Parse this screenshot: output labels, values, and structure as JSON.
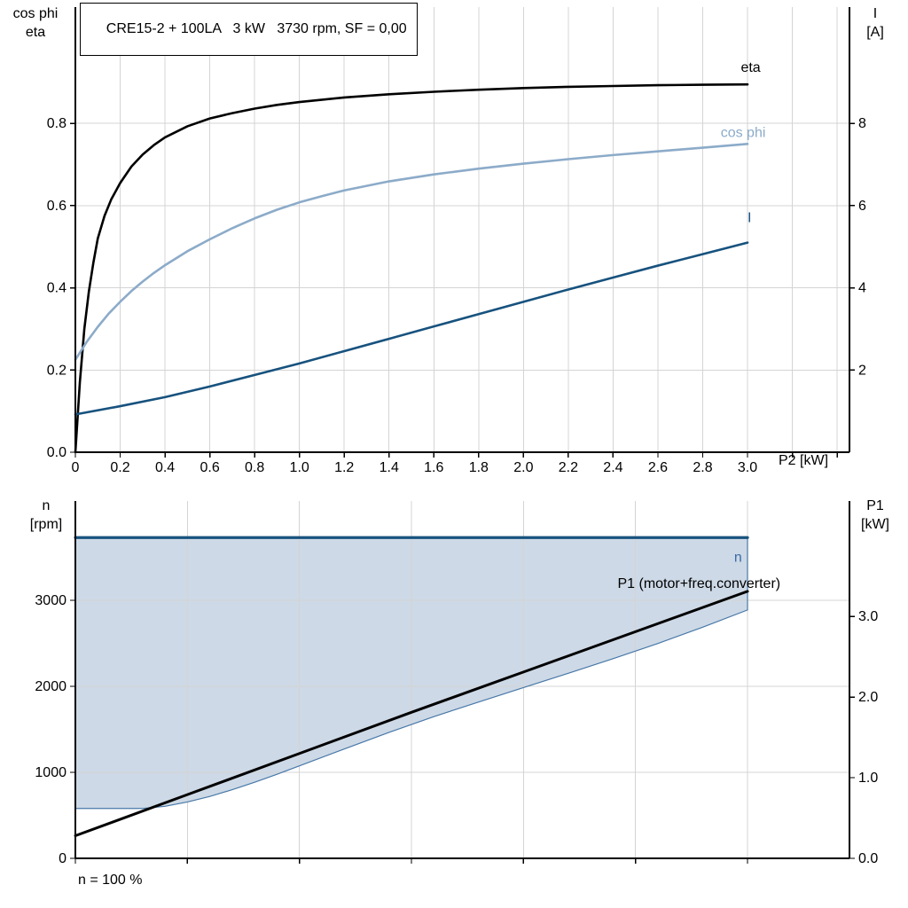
{
  "title": "CRE15-2 + 100LA   3 kW   3730 rpm, SF = 0,00",
  "colors": {
    "grid": "#D4D4D4",
    "axis": "#000000"
  },
  "chart_data": [
    {
      "id": "motor-efficiency-chart",
      "type": "line",
      "xlabel": "P2 [kW]",
      "xlim": [
        0,
        3.455
      ],
      "x_grid_step": 0.2,
      "x_tick_values": [
        0,
        0.2,
        0.4,
        0.6,
        0.8,
        1,
        1.2,
        1.4,
        1.6,
        1.8,
        2,
        2.2,
        2.4,
        2.6,
        2.8,
        3
      ],
      "x_tick_labels": [
        "0",
        "0.2",
        "0.4",
        "0.6",
        "0.8",
        "1.0",
        "1.2",
        "1.4",
        "1.6",
        "1.8",
        "2.0",
        "2.2",
        "2.4",
        "2.6",
        "2.8",
        "3.0"
      ],
      "left_axis": {
        "title_lines": [
          "cos phi",
          "eta"
        ],
        "lim": [
          0,
          1.083
        ],
        "tick_values": [
          0,
          0.2,
          0.4,
          0.6,
          0.8
        ],
        "tick_labels": [
          "0.0",
          "0.2",
          "0.4",
          "0.6",
          "0.8"
        ]
      },
      "right_axis": {
        "title_lines": [
          "I",
          "[A]"
        ],
        "lim": [
          0,
          10.83
        ],
        "tick_values": [
          2,
          4,
          6,
          8
        ],
        "tick_labels": [
          "2",
          "4",
          "6",
          "8"
        ]
      },
      "series": [
        {
          "name": "eta",
          "axis": "left",
          "color": "#000000",
          "width": 2.6,
          "label": {
            "text": "eta",
            "x": 2.97,
            "y": 0.925,
            "color": "#000000"
          },
          "points": [
            [
              0,
              0
            ],
            [
              0.02,
              0.17
            ],
            [
              0.04,
              0.3
            ],
            [
              0.06,
              0.39
            ],
            [
              0.08,
              0.46
            ],
            [
              0.1,
              0.52
            ],
            [
              0.13,
              0.575
            ],
            [
              0.16,
              0.615
            ],
            [
              0.2,
              0.655
            ],
            [
              0.25,
              0.695
            ],
            [
              0.3,
              0.724
            ],
            [
              0.35,
              0.747
            ],
            [
              0.4,
              0.766
            ],
            [
              0.5,
              0.793
            ],
            [
              0.6,
              0.812
            ],
            [
              0.7,
              0.825
            ],
            [
              0.8,
              0.836
            ],
            [
              0.9,
              0.845
            ],
            [
              1,
              0.852
            ],
            [
              1.2,
              0.863
            ],
            [
              1.4,
              0.871
            ],
            [
              1.6,
              0.877
            ],
            [
              1.8,
              0.882
            ],
            [
              2,
              0.886
            ],
            [
              2.2,
              0.889
            ],
            [
              2.4,
              0.891
            ],
            [
              2.6,
              0.893
            ],
            [
              2.8,
              0.894
            ],
            [
              3,
              0.895
            ]
          ]
        },
        {
          "name": "cos phi",
          "axis": "left",
          "color": "#8CABC9",
          "width": 2.6,
          "label": {
            "text": "cos phi",
            "x": 2.88,
            "y": 0.767,
            "color": "#8CABC9"
          },
          "points": [
            [
              0,
              0.225
            ],
            [
              0.05,
              0.268
            ],
            [
              0.1,
              0.305
            ],
            [
              0.15,
              0.338
            ],
            [
              0.2,
              0.366
            ],
            [
              0.25,
              0.392
            ],
            [
              0.3,
              0.415
            ],
            [
              0.35,
              0.436
            ],
            [
              0.4,
              0.455
            ],
            [
              0.5,
              0.489
            ],
            [
              0.6,
              0.518
            ],
            [
              0.7,
              0.545
            ],
            [
              0.8,
              0.569
            ],
            [
              0.9,
              0.59
            ],
            [
              1,
              0.608
            ],
            [
              1.1,
              0.623
            ],
            [
              1.2,
              0.637
            ],
            [
              1.4,
              0.659
            ],
            [
              1.6,
              0.676
            ],
            [
              1.8,
              0.69
            ],
            [
              2,
              0.702
            ],
            [
              2.2,
              0.713
            ],
            [
              2.4,
              0.723
            ],
            [
              2.6,
              0.732
            ],
            [
              2.8,
              0.741
            ],
            [
              3,
              0.75
            ]
          ]
        },
        {
          "name": "I",
          "axis": "right",
          "color": "#17527E",
          "width": 2.6,
          "label": {
            "text": "I",
            "x": 3.0,
            "y": 5.6,
            "color": "#17527E"
          },
          "points": [
            [
              0,
              0.92
            ],
            [
              0.2,
              1.12
            ],
            [
              0.4,
              1.34
            ],
            [
              0.6,
              1.6
            ],
            [
              0.8,
              1.88
            ],
            [
              1,
              2.16
            ],
            [
              1.2,
              2.46
            ],
            [
              1.4,
              2.76
            ],
            [
              1.6,
              3.06
            ],
            [
              1.8,
              3.36
            ],
            [
              2,
              3.66
            ],
            [
              2.2,
              3.96
            ],
            [
              2.4,
              4.25
            ],
            [
              2.6,
              4.54
            ],
            [
              2.8,
              4.82
            ],
            [
              3,
              5.1
            ]
          ]
        }
      ]
    },
    {
      "id": "speed-power-chart",
      "type": "line",
      "xlabel": "",
      "note": "n = 100 %",
      "xlim": [
        0,
        3.455
      ],
      "x_grid_step": 0.5,
      "x_tick_values": [],
      "x_tick_labels": [],
      "left_axis": {
        "title_lines": [
          "n",
          "[rpm]"
        ],
        "lim": [
          0,
          4155
        ],
        "tick_values": [
          0,
          1000,
          2000,
          3000
        ],
        "tick_labels": [
          "0",
          "1000",
          "2000",
          "3000"
        ]
      },
      "right_axis": {
        "title_lines": [
          "P1",
          "[kW]"
        ],
        "lim": [
          0,
          4.43
        ],
        "tick_values": [
          0,
          1,
          2,
          3
        ],
        "tick_labels": [
          "0.0",
          "1.0",
          "2.0",
          "3.0"
        ]
      },
      "region": {
        "name": "speed-control-range",
        "fill": "#CDD9E6",
        "edge": "#4878A8",
        "upper_rpm": 3730,
        "x_start": 0,
        "x_end": 3.0,
        "lower_points_rpm": [
          [
            0,
            580
          ],
          [
            0.3,
            580
          ],
          [
            0.4,
            605
          ],
          [
            0.5,
            655
          ],
          [
            0.6,
            720
          ],
          [
            0.7,
            798
          ],
          [
            0.8,
            885
          ],
          [
            0.9,
            978
          ],
          [
            1,
            1075
          ],
          [
            1.2,
            1272
          ],
          [
            1.4,
            1465
          ],
          [
            1.6,
            1648
          ],
          [
            1.8,
            1818
          ],
          [
            2,
            1985
          ],
          [
            2.2,
            2152
          ],
          [
            2.4,
            2322
          ],
          [
            2.6,
            2498
          ],
          [
            2.8,
            2688
          ],
          [
            3,
            2888
          ]
        ]
      },
      "series": [
        {
          "name": "n",
          "axis": "left",
          "color": "#17527E",
          "width": 3.2,
          "label": {
            "text": "n",
            "x": 2.94,
            "y": 3450,
            "color": "#3A6BA5"
          },
          "points": [
            [
              0,
              3730
            ],
            [
              3,
              3730
            ]
          ]
        },
        {
          "name": "P1 (motor+freq.converter)",
          "axis": "right",
          "color": "#000000",
          "width": 3,
          "label": {
            "text": "P1 (motor+freq.converter)",
            "x": 2.42,
            "y": 3.35,
            "color": "#000000"
          },
          "points": [
            [
              0,
              0.28
            ],
            [
              0.5,
              0.79
            ],
            [
              1,
              1.3
            ],
            [
              1.5,
              1.81
            ],
            [
              2,
              2.31
            ],
            [
              2.5,
              2.81
            ],
            [
              3,
              3.31
            ]
          ]
        }
      ]
    }
  ]
}
